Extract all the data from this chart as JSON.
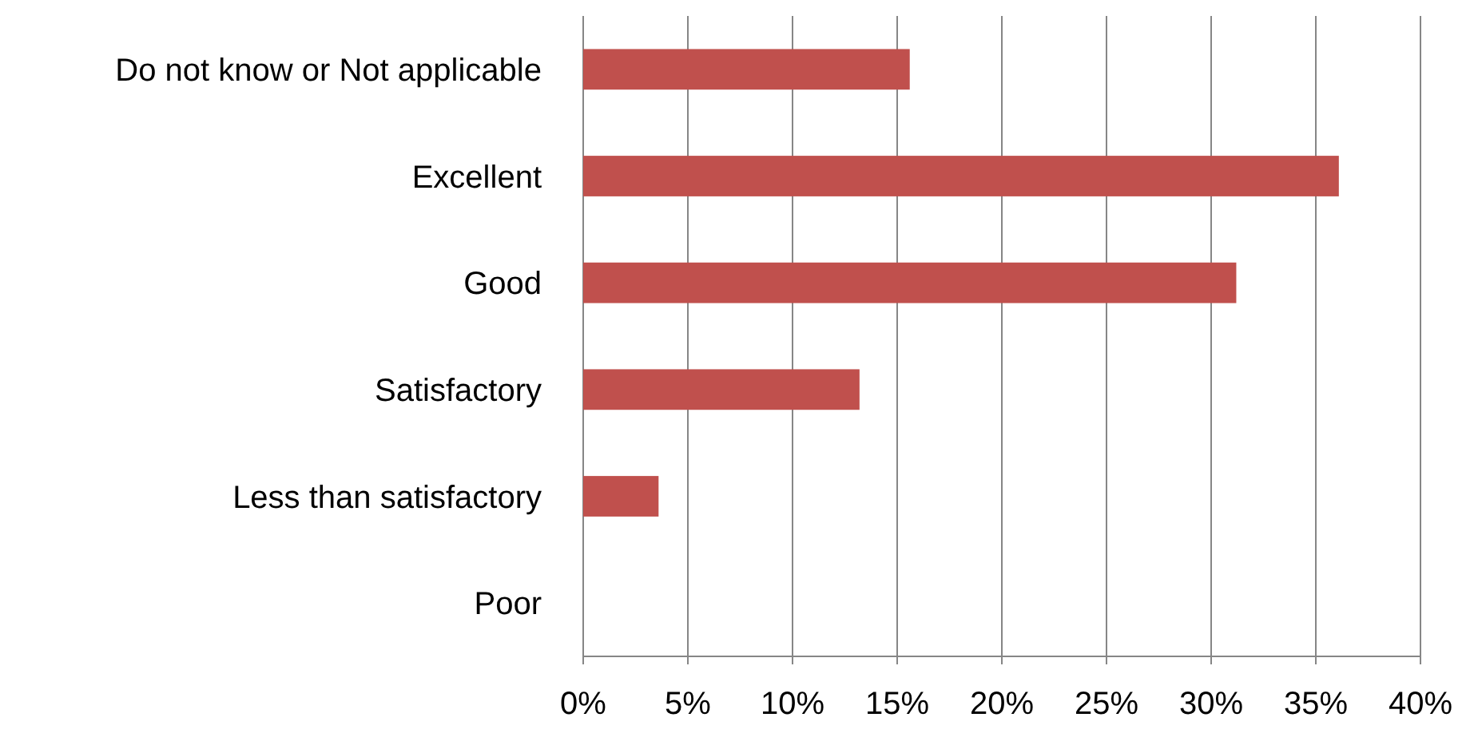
{
  "chart_data": {
    "type": "bar",
    "orientation": "horizontal",
    "categories": [
      "Do not know or Not applicable",
      "Excellent",
      "Good",
      "Satisfactory",
      "Less than satisfactory",
      "Poor"
    ],
    "values": [
      15.6,
      36.1,
      31.2,
      13.2,
      3.6,
      0
    ],
    "color": "#c0504d",
    "xlim": [
      0,
      40
    ],
    "xticks": [
      {
        "value": 0,
        "label": "0%"
      },
      {
        "value": 5,
        "label": "5%"
      },
      {
        "value": 10,
        "label": "10%"
      },
      {
        "value": 15,
        "label": "15%"
      },
      {
        "value": 20,
        "label": "20%"
      },
      {
        "value": 25,
        "label": "25%"
      },
      {
        "value": 30,
        "label": "30%"
      },
      {
        "value": 35,
        "label": "35%"
      },
      {
        "value": 40,
        "label": "40%"
      }
    ],
    "grid": "x"
  }
}
